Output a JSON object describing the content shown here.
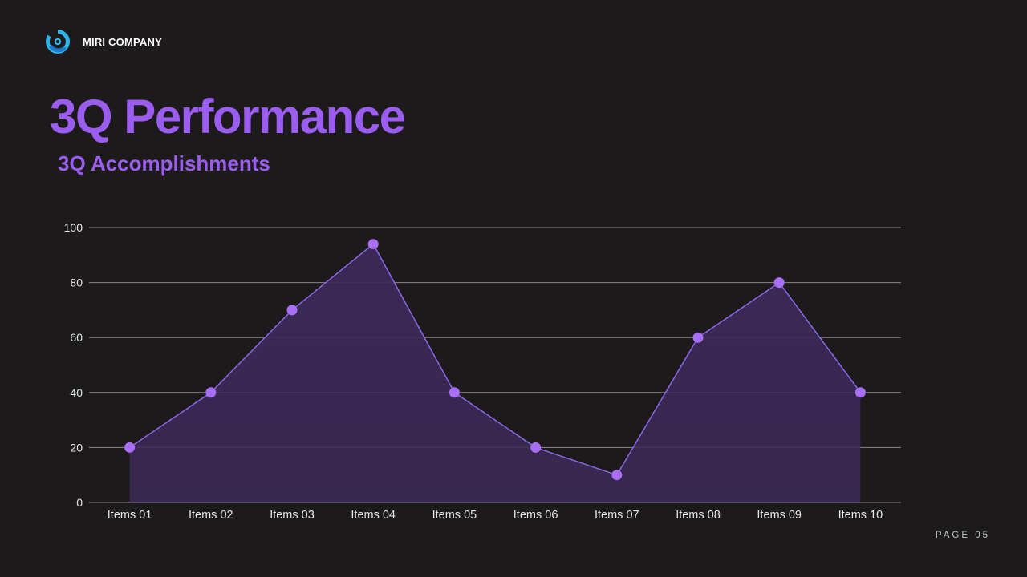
{
  "brand": {
    "name": "MIRI COMPANY"
  },
  "header": {
    "title": "3Q Performance",
    "subtitle": "3Q Accomplishments"
  },
  "footer": {
    "page": "PAGE 05"
  },
  "colors": {
    "background": "#1c1a1b",
    "accent": "#9b5cf0",
    "point": "#a86ef5",
    "line": "#8b66e8",
    "area": "#3c2a58",
    "gridline": "#8a8590",
    "axis_text": "#e6e6e6",
    "logo_primary": "#2bb5ea",
    "logo_secondary": "#1d76c9"
  },
  "icons": {
    "logo": "swirl-logo-icon"
  },
  "chart_data": {
    "type": "area",
    "title": "",
    "xlabel": "",
    "ylabel": "",
    "categories": [
      "Items 01",
      "Items 02",
      "Items 03",
      "Items 04",
      "Items 05",
      "Items 06",
      "Items 07",
      "Items 08",
      "Items 09",
      "Items 10"
    ],
    "series": [
      {
        "name": "3Q Accomplishments",
        "values": [
          20,
          40,
          70,
          94,
          40,
          20,
          10,
          60,
          80,
          40
        ]
      }
    ],
    "ylim": [
      0,
      100
    ],
    "yticks": [
      0,
      20,
      40,
      60,
      80,
      100
    ],
    "grid": true,
    "legend": "none"
  }
}
